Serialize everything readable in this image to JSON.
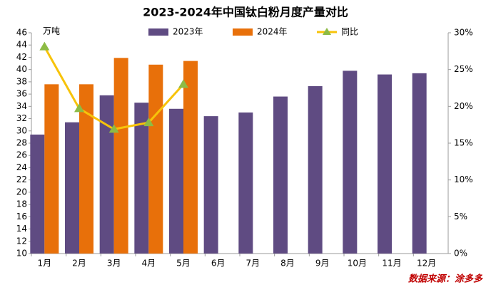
{
  "chart_data": {
    "type": "bar",
    "title": "2023-2024年中国钛白粉月度产量对比",
    "y_unit_label": "万吨",
    "source": "数据来源：涂多多",
    "categories": [
      "1月",
      "2月",
      "3月",
      "4月",
      "5月",
      "6月",
      "7月",
      "8月",
      "9月",
      "10月",
      "11月",
      "12月"
    ],
    "series": [
      {
        "name": "2023年",
        "type": "bar",
        "color": "#5f4b82",
        "values": [
          29.4,
          31.4,
          35.8,
          34.6,
          33.6,
          32.4,
          33.0,
          35.6,
          37.3,
          39.8,
          39.2,
          39.4
        ]
      },
      {
        "name": "2024年",
        "type": "bar",
        "color": "#e8700a",
        "values": [
          37.6,
          37.6,
          41.9,
          40.8,
          41.4,
          null,
          null,
          null,
          null,
          null,
          null,
          null
        ]
      },
      {
        "name": "同比",
        "type": "line",
        "axis": "y2",
        "color": "#f7c30a",
        "marker_color": "#8dbb45",
        "values": [
          28.1,
          19.7,
          16.9,
          17.8,
          23.0,
          null,
          null,
          null,
          null,
          null,
          null,
          null
        ]
      }
    ],
    "ylim": [
      10,
      46
    ],
    "yticks": [
      10,
      12,
      14,
      16,
      18,
      20,
      22,
      24,
      26,
      28,
      30,
      32,
      34,
      36,
      38,
      40,
      42,
      44,
      46
    ],
    "y2lim": [
      0,
      30
    ],
    "y2ticks": [
      {
        "value": 0,
        "label": "0%"
      },
      {
        "value": 5,
        "label": "5%"
      },
      {
        "value": 10,
        "label": "10%"
      },
      {
        "value": 15,
        "label": "15%"
      },
      {
        "value": 20,
        "label": "20%"
      },
      {
        "value": 25,
        "label": "25%"
      },
      {
        "value": 30,
        "label": "30%"
      }
    ],
    "legend": "top",
    "grid": false
  }
}
